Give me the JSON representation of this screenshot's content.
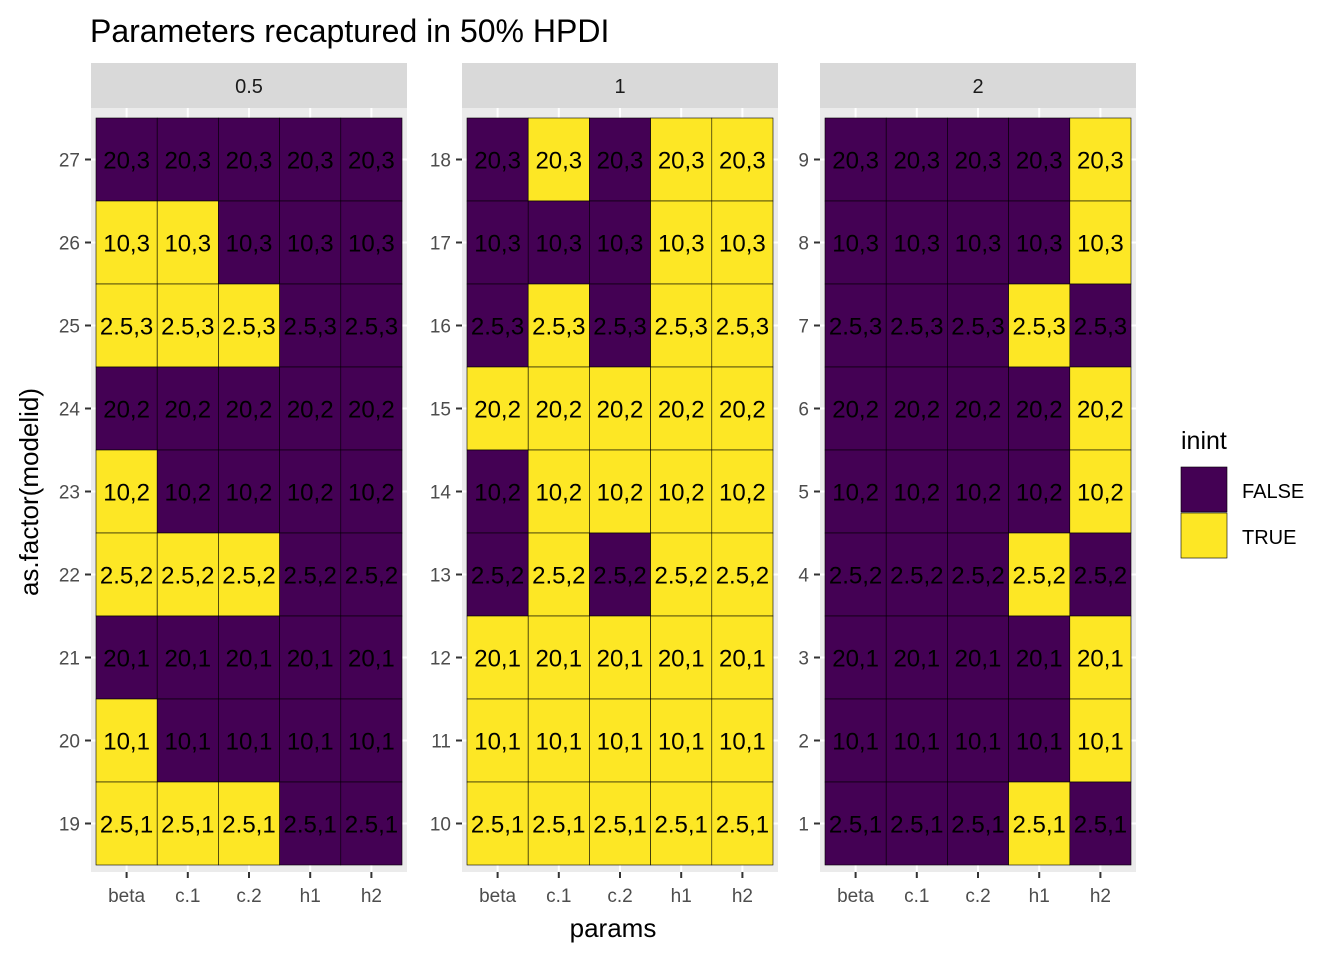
{
  "chart_data": {
    "type": "heatmap",
    "title": "Parameters recaptured in 50% HPDI",
    "xlabel": "params",
    "ylabel": "as.factor(modelid)",
    "x_categories": [
      "beta",
      "c.1",
      "c.2",
      "h1",
      "h2"
    ],
    "grid": true,
    "legend": {
      "title": "inint",
      "position": "right",
      "entries": [
        {
          "label": "FALSE",
          "color": "#440154"
        },
        {
          "label": "TRUE",
          "color": "#FDE725"
        }
      ]
    },
    "colors": {
      "false": "#440154",
      "true": "#FDE725",
      "panel_bg": "#EBEBEB",
      "strip_bg": "#D9D9D9"
    },
    "facets": [
      {
        "strip": "0.5",
        "rows": [
          {
            "modelid": "27",
            "label": "20,3",
            "inint": [
              false,
              false,
              false,
              false,
              false
            ]
          },
          {
            "modelid": "26",
            "label": "10,3",
            "inint": [
              true,
              true,
              false,
              false,
              false
            ]
          },
          {
            "modelid": "25",
            "label": "2.5,3",
            "inint": [
              true,
              true,
              true,
              false,
              false
            ]
          },
          {
            "modelid": "24",
            "label": "20,2",
            "inint": [
              false,
              false,
              false,
              false,
              false
            ]
          },
          {
            "modelid": "23",
            "label": "10,2",
            "inint": [
              true,
              false,
              false,
              false,
              false
            ]
          },
          {
            "modelid": "22",
            "label": "2.5,2",
            "inint": [
              true,
              true,
              true,
              false,
              false
            ]
          },
          {
            "modelid": "21",
            "label": "20,1",
            "inint": [
              false,
              false,
              false,
              false,
              false
            ]
          },
          {
            "modelid": "20",
            "label": "10,1",
            "inint": [
              true,
              false,
              false,
              false,
              false
            ]
          },
          {
            "modelid": "19",
            "label": "2.5,1",
            "inint": [
              true,
              true,
              true,
              false,
              false
            ]
          }
        ]
      },
      {
        "strip": "1",
        "rows": [
          {
            "modelid": "18",
            "label": "20,3",
            "inint": [
              false,
              true,
              false,
              true,
              true
            ]
          },
          {
            "modelid": "17",
            "label": "10,3",
            "inint": [
              false,
              false,
              false,
              true,
              true
            ]
          },
          {
            "modelid": "16",
            "label": "2.5,3",
            "inint": [
              false,
              true,
              false,
              true,
              true
            ]
          },
          {
            "modelid": "15",
            "label": "20,2",
            "inint": [
              true,
              true,
              true,
              true,
              true
            ]
          },
          {
            "modelid": "14",
            "label": "10,2",
            "inint": [
              false,
              true,
              true,
              true,
              true
            ]
          },
          {
            "modelid": "13",
            "label": "2.5,2",
            "inint": [
              false,
              true,
              false,
              true,
              true
            ]
          },
          {
            "modelid": "12",
            "label": "20,1",
            "inint": [
              true,
              true,
              true,
              true,
              true
            ]
          },
          {
            "modelid": "11",
            "label": "10,1",
            "inint": [
              true,
              true,
              true,
              true,
              true
            ]
          },
          {
            "modelid": "10",
            "label": "2.5,1",
            "inint": [
              true,
              true,
              true,
              true,
              true
            ]
          }
        ]
      },
      {
        "strip": "2",
        "rows": [
          {
            "modelid": "9",
            "label": "20,3",
            "inint": [
              false,
              false,
              false,
              false,
              true
            ]
          },
          {
            "modelid": "8",
            "label": "10,3",
            "inint": [
              false,
              false,
              false,
              false,
              true
            ]
          },
          {
            "modelid": "7",
            "label": "2.5,3",
            "inint": [
              false,
              false,
              false,
              true,
              false
            ]
          },
          {
            "modelid": "6",
            "label": "20,2",
            "inint": [
              false,
              false,
              false,
              false,
              true
            ]
          },
          {
            "modelid": "5",
            "label": "10,2",
            "inint": [
              false,
              false,
              false,
              false,
              true
            ]
          },
          {
            "modelid": "4",
            "label": "2.5,2",
            "inint": [
              false,
              false,
              false,
              true,
              false
            ]
          },
          {
            "modelid": "3",
            "label": "20,1",
            "inint": [
              false,
              false,
              false,
              false,
              true
            ]
          },
          {
            "modelid": "2",
            "label": "10,1",
            "inint": [
              false,
              false,
              false,
              false,
              true
            ]
          },
          {
            "modelid": "1",
            "label": "2.5,1",
            "inint": [
              false,
              false,
              false,
              true,
              false
            ]
          }
        ]
      }
    ]
  }
}
